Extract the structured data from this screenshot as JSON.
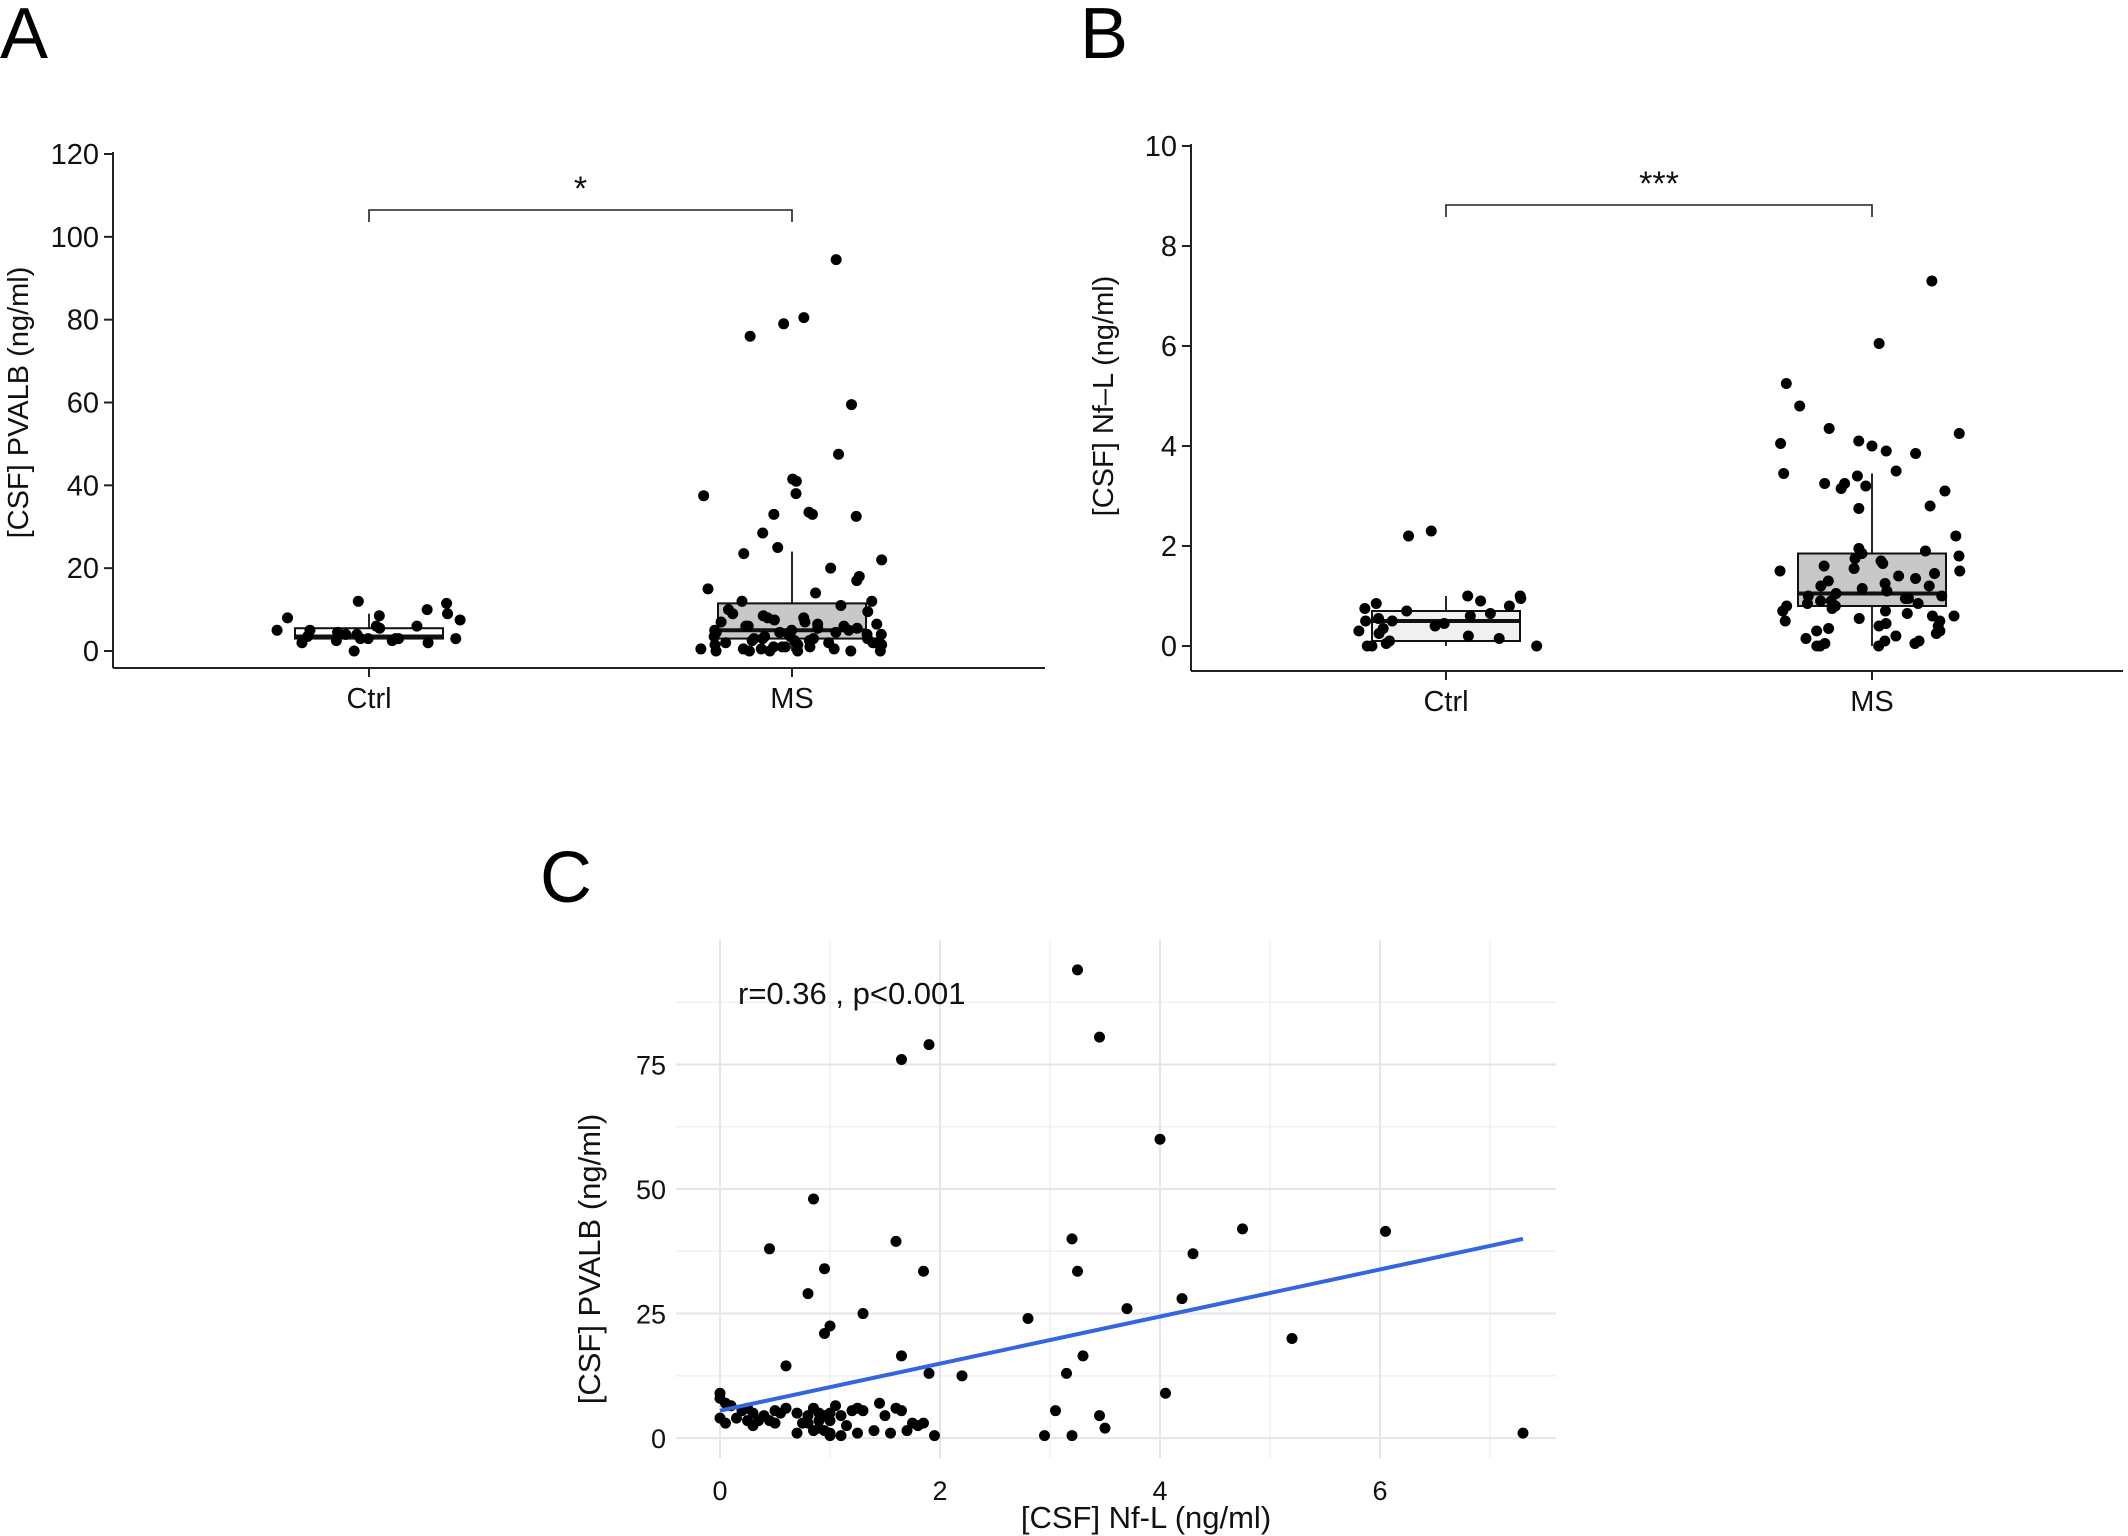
{
  "panels": {
    "a": {
      "letter": "A"
    },
    "b": {
      "letter": "B"
    },
    "c": {
      "letter": "C"
    }
  },
  "chart_data": [
    {
      "id": "A",
      "type": "box",
      "title": "",
      "xlabel": "",
      "ylabel": "[CSF] PVALB (ng/ml)",
      "ylim": [
        0,
        120
      ],
      "yticks": [
        0,
        20,
        40,
        60,
        80,
        100,
        120
      ],
      "categories": [
        "Ctrl",
        "MS"
      ],
      "significance": "*",
      "grid": false,
      "boxes": [
        {
          "group": "Ctrl",
          "q1": 3,
          "median": 3.5,
          "q3": 5.5,
          "whisker_low": 2,
          "whisker_high": 9,
          "fill": "#ffffff"
        },
        {
          "group": "MS",
          "q1": 3,
          "median": 5,
          "q3": 11.5,
          "whisker_low": 0,
          "whisker_high": 24,
          "fill": "#c8c8c8"
        }
      ],
      "points": [
        {
          "group": "Ctrl",
          "values": [
            11.5,
            8,
            5.5,
            4,
            3,
            2.5,
            3.5,
            4.5,
            6,
            3,
            2,
            5,
            7.5,
            10,
            12,
            9,
            4,
            3,
            2.5,
            6,
            8.5,
            3,
            0,
            2,
            4.5,
            3,
            5
          ]
        },
        {
          "group": "MS",
          "values": [
            94.5,
            80.5,
            79,
            76,
            59.5,
            47.5,
            41.5,
            41,
            38,
            37.5,
            33.5,
            33,
            33,
            32.5,
            28.5,
            25,
            23.5,
            22,
            20,
            18,
            17,
            15,
            14,
            12,
            12,
            11,
            10,
            9.5,
            9,
            8.5,
            8,
            8,
            7.5,
            7,
            7,
            6.5,
            6.5,
            6,
            6,
            6,
            5.5,
            5.5,
            5,
            5,
            5,
            4.5,
            4.5,
            4.5,
            4,
            4,
            4,
            3.5,
            3.5,
            3.5,
            3,
            3,
            3,
            3,
            2.5,
            2.5,
            2.5,
            2,
            2,
            2,
            2,
            1.5,
            1.5,
            1.5,
            1,
            1,
            1,
            1,
            0.5,
            0.5,
            0.5,
            0.5,
            0,
            0,
            0,
            0,
            0,
            0
          ]
        }
      ]
    },
    {
      "id": "B",
      "type": "box",
      "title": "",
      "xlabel": "",
      "ylabel": "[CSF] Nf–L (ng/ml)",
      "ylim": [
        0,
        10
      ],
      "yticks": [
        0,
        2,
        4,
        6,
        8,
        10
      ],
      "categories": [
        "Ctrl",
        "MS"
      ],
      "significance": "***",
      "grid": false,
      "boxes": [
        {
          "group": "Ctrl",
          "q1": 0.1,
          "median": 0.5,
          "q3": 0.7,
          "whisker_low": 0,
          "whisker_high": 1.0,
          "fill": "#f0f0f0"
        },
        {
          "group": "MS",
          "q1": 0.8,
          "median": 1.05,
          "q3": 1.85,
          "whisker_low": 0,
          "whisker_high": 3.45,
          "fill": "#c8c8c8"
        }
      ],
      "points": [
        {
          "group": "Ctrl",
          "values": [
            2.3,
            2.2,
            1.0,
            1.0,
            0.95,
            0.9,
            0.85,
            0.8,
            0.75,
            0.7,
            0.65,
            0.6,
            0.55,
            0.5,
            0.5,
            0.45,
            0.4,
            0.35,
            0.3,
            0.25,
            0.2,
            0.15,
            0.1,
            0.05,
            0.0,
            0.0,
            0.0
          ]
        },
        {
          "group": "MS",
          "values": [
            7.3,
            6.05,
            5.25,
            4.8,
            4.35,
            4.25,
            4.1,
            4.05,
            4.0,
            3.9,
            3.85,
            3.5,
            3.45,
            3.4,
            3.25,
            3.25,
            3.2,
            3.15,
            3.1,
            2.8,
            2.75,
            2.2,
            1.95,
            1.9,
            1.85,
            1.8,
            1.75,
            1.7,
            1.65,
            1.6,
            1.55,
            1.5,
            1.5,
            1.45,
            1.4,
            1.35,
            1.3,
            1.25,
            1.2,
            1.2,
            1.15,
            1.1,
            1.05,
            1.0,
            1.0,
            0.95,
            0.95,
            0.9,
            0.9,
            0.85,
            0.85,
            0.8,
            0.8,
            0.75,
            0.7,
            0.7,
            0.65,
            0.6,
            0.6,
            0.55,
            0.5,
            0.5,
            0.45,
            0.4,
            0.4,
            0.35,
            0.3,
            0.3,
            0.25,
            0.2,
            0.15,
            0.1,
            0.1,
            0.05,
            0.05,
            0.0,
            0.0,
            0.0
          ]
        }
      ]
    },
    {
      "id": "C",
      "type": "scatter",
      "title": "",
      "xlabel": "[CSF] Nf-L (ng/ml)",
      "ylabel": "[CSF] PVALB (ng/ml)",
      "xlim": [
        -0.4,
        7.6
      ],
      "ylim": [
        -4,
        100
      ],
      "xticks": [
        0,
        2,
        4,
        6
      ],
      "yticks": [
        0,
        25,
        50,
        75
      ],
      "annotation": "r=0.36 , p<0.001",
      "grid": true,
      "trend_line": {
        "x": [
          0,
          7.3
        ],
        "y": [
          5.5,
          40
        ],
        "color": "#3366e0"
      },
      "x": [
        3.25,
        3.45,
        1.65,
        1.9,
        4.0,
        0.85,
        4.75,
        6.05,
        1.6,
        4.3,
        3.2,
        3.25,
        0.45,
        0.95,
        1.85,
        4.2,
        0.8,
        3.7,
        1.3,
        2.8,
        1.0,
        0.95,
        5.2,
        3.3,
        1.65,
        0.6,
        3.15,
        1.9,
        2.2,
        4.05,
        0.0,
        0.0,
        0.05,
        0.1,
        0.2,
        0.25,
        0.3,
        0.4,
        0.5,
        0.55,
        0.6,
        0.7,
        0.8,
        0.85,
        0.9,
        0.95,
        1.0,
        1.05,
        1.1,
        1.2,
        1.25,
        1.3,
        1.45,
        1.5,
        1.6,
        1.65,
        1.75,
        1.8,
        1.85,
        0.75,
        0.9,
        1.0,
        1.15,
        0.15,
        0.35,
        0.5,
        0.85,
        0.95,
        1.4,
        1.7,
        3.45,
        3.5,
        3.05,
        0.0,
        0.25,
        0.45,
        0.8,
        0.9,
        1.0,
        1.1,
        1.55,
        1.95,
        2.95,
        3.2,
        7.3,
        0.05,
        0.3,
        0.7,
        1.0,
        1.25
      ],
      "y": [
        94,
        80.5,
        76,
        79,
        60,
        48,
        42,
        41.5,
        39.5,
        37,
        40,
        33.5,
        38,
        34,
        33.5,
        28,
        29,
        26,
        25,
        24,
        22.5,
        21,
        20,
        16.5,
        16.5,
        14.5,
        13,
        13,
        12.5,
        9,
        9,
        8,
        7,
        6.5,
        5.5,
        6,
        5,
        4.5,
        5.5,
        5,
        6,
        5,
        4.5,
        6,
        5,
        4.5,
        5,
        6.5,
        4.5,
        5.5,
        6,
        5.5,
        7,
        4.5,
        6,
        5.5,
        3,
        2.5,
        3,
        3,
        2,
        3.5,
        2.5,
        4,
        3.5,
        3,
        1.5,
        1.5,
        1.5,
        1.5,
        4.5,
        2,
        5.5,
        4,
        3.5,
        3.5,
        3,
        3.5,
        1,
        0.5,
        1,
        0.5,
        0.5,
        0.5,
        1,
        3,
        2.5,
        1,
        0.5,
        1
      ]
    }
  ]
}
